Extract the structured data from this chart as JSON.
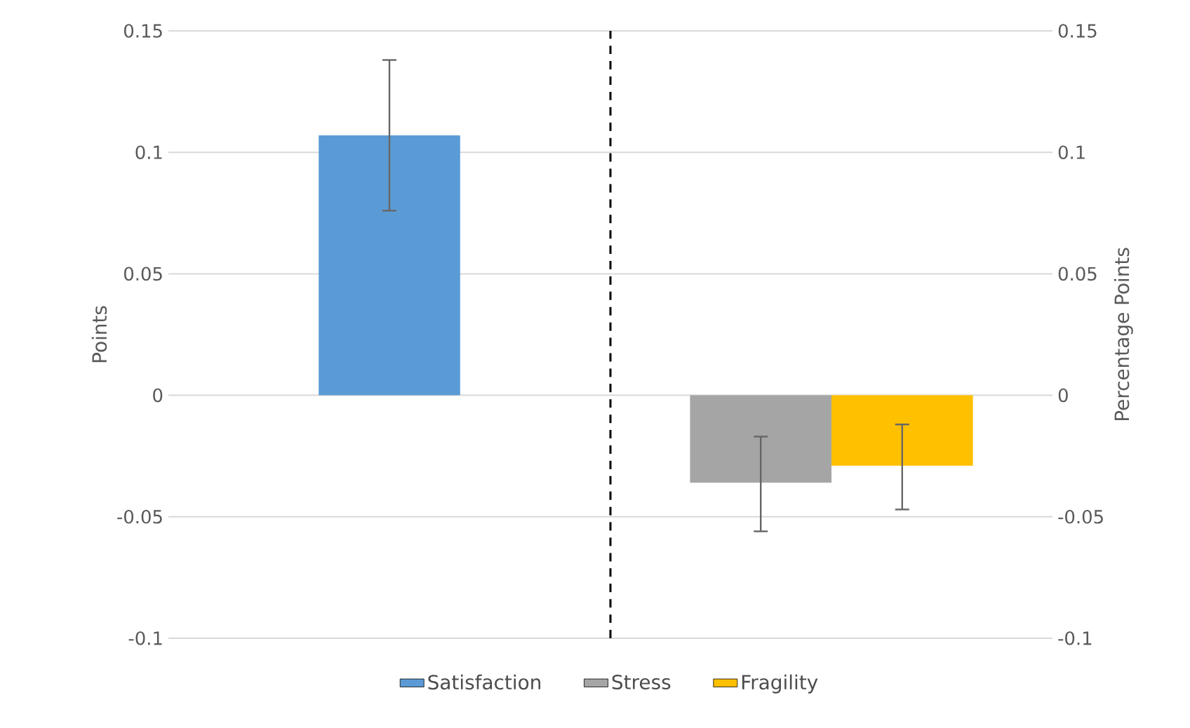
{
  "chart_data": {
    "type": "bar",
    "ylabel": "Points",
    "y2label": "Percentage Points",
    "categories": [
      null,
      null
    ],
    "series": [
      {
        "name": "Satisfaction",
        "color": "#5b9bd5",
        "values": [
          0.107,
          null
        ],
        "errors": [
          [
            0.076,
            0.138
          ],
          null
        ]
      },
      {
        "name": "Stress",
        "color": "#a5a5a5",
        "values": [
          null,
          -0.036
        ],
        "errors": [
          null,
          [
            -0.056,
            -0.017
          ]
        ],
        "axis": "y2"
      },
      {
        "name": "Fragility",
        "color": "#ffc000",
        "values": [
          null,
          -0.029
        ],
        "errors": [
          null,
          [
            -0.047,
            -0.012
          ]
        ],
        "axis": "y2"
      }
    ],
    "ylim": [
      -0.1,
      0.15
    ],
    "yticks": [
      -0.1,
      -0.05,
      0,
      0.05,
      0.1,
      0.15
    ],
    "y2lim": [
      -0.1,
      0.15
    ],
    "y2ticks": [
      -0.1,
      -0.05,
      0,
      0.05,
      0.1,
      0.15
    ],
    "grid": "y",
    "legend": "bottom"
  }
}
